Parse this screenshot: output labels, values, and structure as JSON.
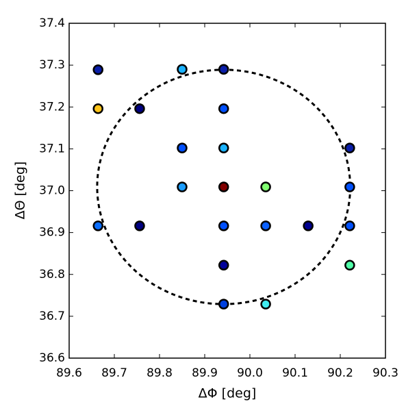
{
  "chart_data": {
    "type": "scatter",
    "x_label": "ΔΦ [deg]",
    "y_label": "ΔΘ [deg]",
    "x": [
      89.664,
      89.85,
      89.942,
      89.664,
      89.756,
      89.942,
      89.85,
      89.942,
      90.221,
      89.85,
      89.942,
      90.035,
      90.221,
      89.664,
      89.756,
      89.942,
      90.035,
      90.129,
      90.221,
      89.942,
      90.221,
      89.942,
      90.035
    ],
    "y": [
      37.289,
      37.29,
      37.29,
      37.196,
      37.196,
      37.196,
      37.102,
      37.102,
      37.102,
      37.009,
      37.009,
      37.009,
      37.009,
      36.916,
      36.916,
      36.916,
      36.916,
      36.916,
      36.916,
      36.822,
      36.822,
      36.729,
      36.729
    ],
    "colors": [
      "#0a1ea8",
      "#1ab2ff",
      "#0a1ea8",
      "#ffc41a",
      "#000080",
      "#0050ff",
      "#0050ff",
      "#1ab2ff",
      "#0a1ea8",
      "#1a9cff",
      "#800000",
      "#80ff70",
      "#0050ff",
      "#0a6eff",
      "#000080",
      "#0050ff",
      "#0a60ff",
      "#000090",
      "#0050ff",
      "#00009a",
      "#50ffa8",
      "#0040e0",
      "#40ecf0"
    ],
    "circle": {
      "center": [
        89.942,
        37.009
      ],
      "radius": 0.28
    },
    "xlim": [
      89.6,
      90.3
    ],
    "ylim": [
      36.6,
      37.4
    ],
    "xticks": [
      89.6,
      89.7,
      89.8,
      89.9,
      {
        "value": 90.0,
        "label": "90.0"
      },
      90.1,
      90.2,
      90.3
    ],
    "yticks": [
      36.6,
      36.7,
      36.8,
      36.9,
      {
        "value": 37.0,
        "label": "37.0"
      },
      37.1,
      37.2,
      37.3,
      37.4
    ]
  }
}
